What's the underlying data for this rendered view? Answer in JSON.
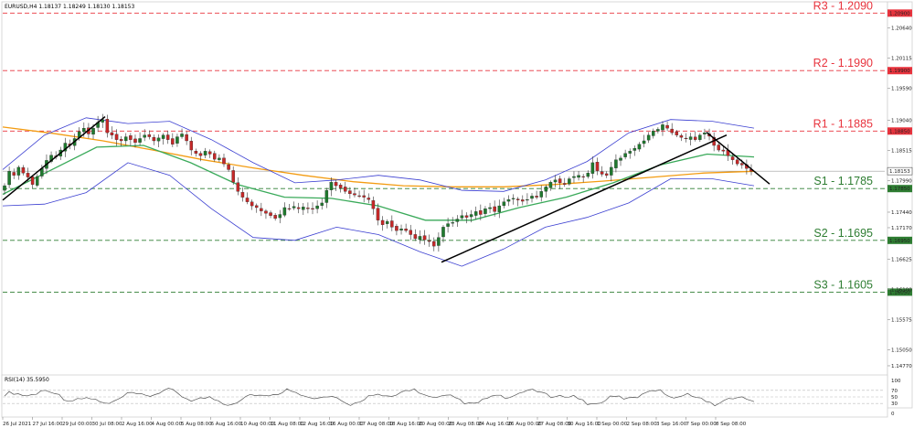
{
  "header": {
    "symbol_info": "EURUSD,H4  1.18137 1.18249 1.18130 1.18153",
    "indicator_info": "RSI(14) 35.5950"
  },
  "colors": {
    "resistance": "#e8333d",
    "support": "#2e7d32",
    "bull_candle": "#1f7a2e",
    "bear_candle": "#c62828",
    "ma_slow": "#f39c12",
    "ma_mid": "#3aaa5a",
    "bollinger": "#3b3fd1",
    "trendline": "#000000",
    "rsi_line": "#555555"
  },
  "chart_data": {
    "type": "candlestick",
    "instrument": "EURUSD",
    "timeframe": "H4",
    "price_range": [
      1.1469,
      1.2108
    ],
    "price_ticks": [
      "1.20640",
      "1.20115",
      "1.19590",
      "1.19040",
      "1.18515",
      "1.17990",
      "1.17440",
      "1.17170",
      "1.16625",
      "1.16100",
      "1.15575",
      "1.15050",
      "1.14770"
    ],
    "time_ticks": [
      "26 Jul 2021",
      "27 Jul 16:00",
      "29 Jul 00:00",
      "30 Jul 08:00",
      "2 Aug 16:00",
      "4 Aug 00:00",
      "5 Aug 08:00",
      "6 Aug 16:00",
      "10 Aug 00:00",
      "11 Aug 08:00",
      "12 Aug 16:00",
      "16 Aug 00:00",
      "17 Aug 08:00",
      "18 Aug 16:00",
      "20 Aug 00:00",
      "23 Aug 08:00",
      "24 Aug 16:00",
      "26 Aug 00:00",
      "27 Aug 08:00",
      "30 Aug 16:00",
      "1 Sep 00:00",
      "2 Sep 08:00",
      "3 Sep 16:00",
      "7 Sep 00:00",
      "8 Sep 08:00"
    ],
    "levels": [
      {
        "label": "R3 - 1.2090",
        "value": 1.209,
        "tag": "1.20900",
        "kind": "resistance"
      },
      {
        "label": "R2 - 1.1990",
        "value": 1.199,
        "tag": "1.19900",
        "kind": "resistance"
      },
      {
        "label": "R1 - 1.1885",
        "value": 1.1885,
        "tag": "1.18850",
        "kind": "resistance"
      },
      {
        "label": "S1 - 1.1785",
        "value": 1.1785,
        "tag": "1.17850",
        "kind": "support"
      },
      {
        "label": "S2 - 1.1695",
        "value": 1.1695,
        "tag": "1.16950",
        "kind": "support"
      },
      {
        "label": "S3 - 1.1605",
        "value": 1.1605,
        "tag": "1.16050",
        "kind": "support"
      }
    ],
    "current_price": {
      "value": 1.18153,
      "tag": "1.18153"
    },
    "closes": [
      1.179,
      1.1815,
      1.1808,
      1.1822,
      1.1812,
      1.1805,
      1.1792,
      1.1806,
      1.182,
      1.1834,
      1.1843,
      1.184,
      1.1852,
      1.1864,
      1.186,
      1.1872,
      1.1884,
      1.189,
      1.188,
      1.189,
      1.19,
      1.1905,
      1.1882,
      1.1878,
      1.187,
      1.1868,
      1.1875,
      1.187,
      1.1865,
      1.1872,
      1.1878,
      1.1875,
      1.1868,
      1.1873,
      1.1878,
      1.187,
      1.1862,
      1.1875,
      1.188,
      1.1868,
      1.1852,
      1.1846,
      1.1842,
      1.185,
      1.1845,
      1.1836,
      1.1838,
      1.1828,
      1.1818,
      1.1796,
      1.178,
      1.177,
      1.1762,
      1.1755,
      1.1752,
      1.1746,
      1.1742,
      1.1738,
      1.1733,
      1.174,
      1.1752,
      1.175,
      1.1754,
      1.175,
      1.1753,
      1.175,
      1.1749,
      1.1755,
      1.176,
      1.1782,
      1.1796,
      1.179,
      1.1786,
      1.178,
      1.1776,
      1.1774,
      1.1772,
      1.177,
      1.1766,
      1.175,
      1.173,
      1.1722,
      1.1728,
      1.1718,
      1.1712,
      1.1715,
      1.1712,
      1.1705,
      1.1698,
      1.1702,
      1.1696,
      1.1693,
      1.1685,
      1.17,
      1.1718,
      1.1724,
      1.1726,
      1.1732,
      1.1738,
      1.1735,
      1.174,
      1.1745,
      1.174,
      1.175,
      1.1752,
      1.1745,
      1.1755,
      1.1762,
      1.1766,
      1.1768,
      1.1765,
      1.1763,
      1.1766,
      1.1772,
      1.177,
      1.178,
      1.1788,
      1.1796,
      1.18,
      1.1795,
      1.1792,
      1.1802,
      1.1806,
      1.1808,
      1.1805,
      1.1812,
      1.183,
      1.1816,
      1.181,
      1.1808,
      1.1822,
      1.1835,
      1.1838,
      1.1846,
      1.185,
      1.1855,
      1.1862,
      1.1868,
      1.1878,
      1.1885,
      1.1888,
      1.1896,
      1.189,
      1.1882,
      1.1878,
      1.1874,
      1.1872,
      1.1875,
      1.187,
      1.1878,
      1.1882,
      1.1876,
      1.186,
      1.1852,
      1.185,
      1.1842,
      1.1835,
      1.1828,
      1.1826,
      1.182,
      1.1815
    ],
    "indicators": [
      {
        "name": "MA slow",
        "color_key": "ma_slow",
        "values": [
          1.1892,
          1.1881,
          1.1868,
          1.1852,
          1.1835,
          1.1821,
          1.1808,
          1.1797,
          1.179,
          1.1788,
          1.1788,
          1.1792,
          1.1798,
          1.1805,
          1.1812,
          1.1815
        ]
      },
      {
        "name": "MA mid",
        "color_key": "ma_mid",
        "values": [
          1.1775,
          1.1816,
          1.1857,
          1.186,
          1.183,
          1.1792,
          1.177,
          1.1768,
          1.1755,
          1.173,
          1.173,
          1.1752,
          1.177,
          1.1795,
          1.1826,
          1.1845,
          1.184
        ]
      },
      {
        "name": "Bollinger upper",
        "color_key": "bollinger",
        "values": [
          1.1818,
          1.1878,
          1.1908,
          1.1898,
          1.1902,
          1.187,
          1.183,
          1.1795,
          1.18,
          1.1808,
          1.18,
          1.1782,
          1.178,
          1.18,
          1.1832,
          1.1882,
          1.1905,
          1.1902,
          1.189
        ]
      },
      {
        "name": "Bollinger lower",
        "color_key": "bollinger",
        "values": [
          1.1755,
          1.1758,
          1.1778,
          1.183,
          1.1808,
          1.175,
          1.17,
          1.1695,
          1.1718,
          1.1705,
          1.1675,
          1.165,
          1.168,
          1.1718,
          1.1735,
          1.176,
          1.1802,
          1.1802,
          1.179
        ]
      }
    ],
    "trendlines": [
      {
        "from": [
          1.1765
        ],
        "to": [
          1.191
        ]
      },
      {
        "from": [
          1.1657
        ],
        "to": [
          1.1878
        ]
      },
      {
        "from": [
          1.1883
        ],
        "to": [
          1.1793
        ]
      }
    ],
    "rsi": {
      "levels": [
        70,
        50,
        30
      ],
      "tick_labels": [
        "100",
        "70",
        "50",
        "30",
        "0"
      ],
      "last": 35.595
    }
  }
}
